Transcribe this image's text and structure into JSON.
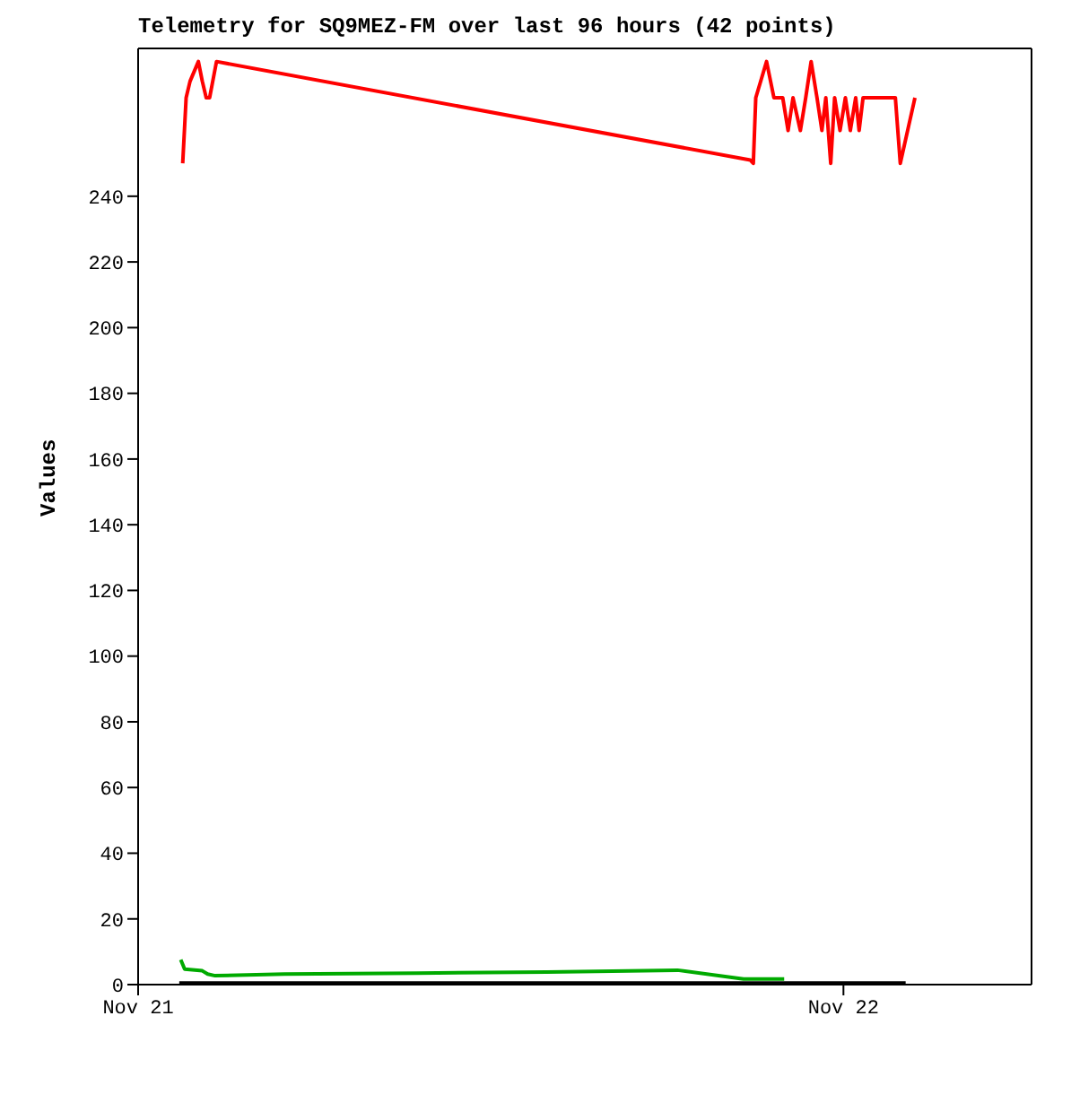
{
  "chart_data": {
    "type": "line",
    "title": "Telemetry for SQ9MEZ-FM over last 96 hours (42 points)",
    "ylabel": "Values",
    "xlim": [
      "--11-21",
      "--11-22T06:24"
    ],
    "xticks": [
      {
        "value": "--11-21",
        "label": "Nov 21"
      },
      {
        "value": "--11-22",
        "label": "Nov 22"
      }
    ],
    "ylim": [
      0,
      285
    ],
    "yticks": [
      0,
      20,
      40,
      60,
      80,
      100,
      120,
      140,
      160,
      180,
      200,
      220,
      240
    ],
    "grid": false,
    "legend": false,
    "marker": "none",
    "line_style": "solid",
    "series": [
      {
        "color": "#ff0000",
        "x": [
          "--11-21T01:31",
          "--11-21T01:38",
          "--11-21T01:46",
          "--11-21T02:03",
          "--11-21T02:11",
          "--11-21T02:19",
          "--11-21T02:26",
          "--11-21T02:40",
          "--11-21T20:50",
          "--11-21T20:56",
          "--11-21T21:01",
          "--11-21T21:23",
          "--11-21T21:38",
          "--11-21T21:56",
          "--11-21T22:07",
          "--11-21T22:17",
          "--11-21T22:32",
          "--11-21T22:43",
          "--11-21T22:54",
          "--11-21T23:06",
          "--11-21T23:16",
          "--11-21T23:24",
          "--11-21T23:34",
          "--11-21T23:42",
          "--11-21T23:53",
          "--11-22T00:04",
          "--11-22T00:14",
          "--11-22T00:25",
          "--11-22T00:32",
          "--11-22T00:40",
          "--11-22T01:46",
          "--11-22T01:56",
          "--11-22T02:26"
        ],
        "values": [
          250,
          270,
          275,
          281,
          275,
          270,
          270,
          281,
          251,
          250,
          270,
          281,
          270,
          270,
          260,
          270,
          260,
          270,
          281,
          270,
          260,
          270,
          250,
          270,
          260,
          270,
          260,
          270,
          260,
          270,
          270,
          250,
          270
        ]
      },
      {
        "color": "#00aa00",
        "x": [
          "--11-21T01:27",
          "--11-21T01:35",
          "--11-21T02:11",
          "--11-21T02:22",
          "--11-21T02:37",
          "--11-21T04:59",
          "--11-21T09:29",
          "--11-21T13:55",
          "--11-21T18:21",
          "--11-21T20:36",
          "--11-21T21:59"
        ],
        "values": [
          7.6,
          4.7,
          4.2,
          3.2,
          2.7,
          3.2,
          3.5,
          3.8,
          4.4,
          1.7,
          1.7
        ]
      },
      {
        "color": "#000000",
        "x": [
          "--11-21T01:24",
          "--11-22T02:07"
        ],
        "values": [
          0.5,
          0.5
        ]
      }
    ]
  }
}
